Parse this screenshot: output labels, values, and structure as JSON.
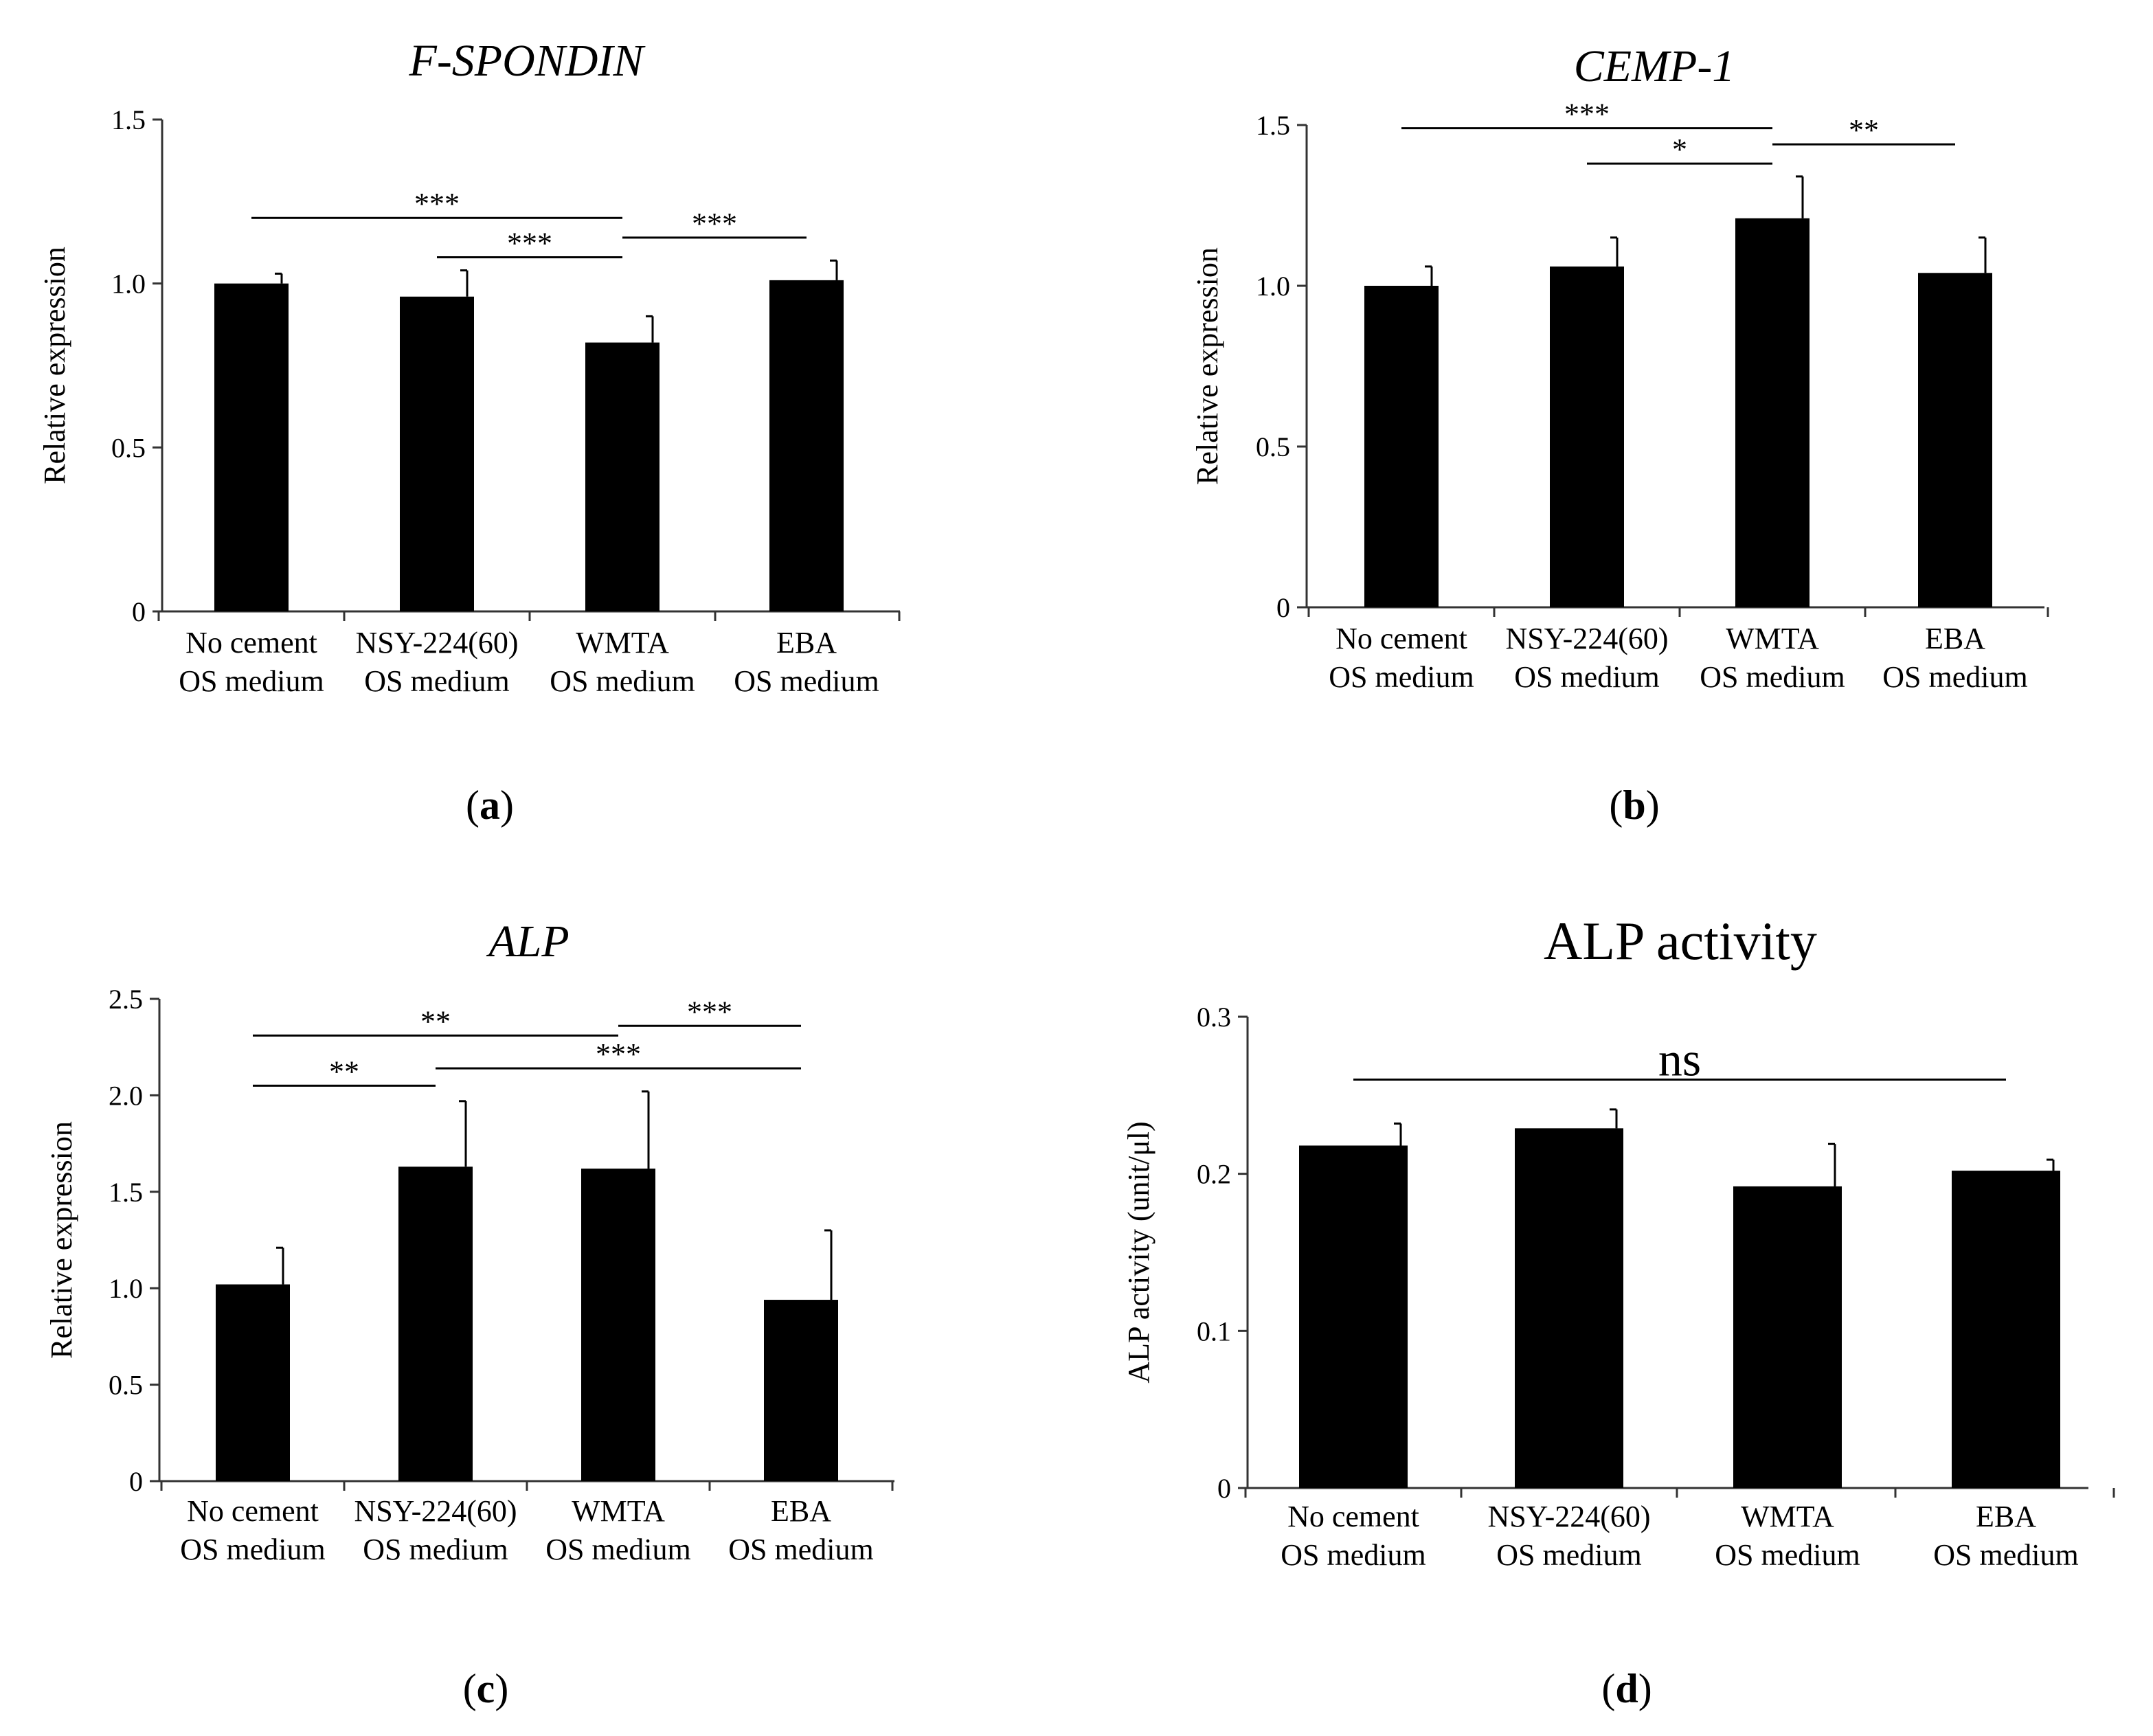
{
  "chart_data": [
    {
      "type": "bar",
      "panel_label": "a",
      "title": "F-SPONDIN",
      "title_italic": true,
      "ylabel": "Relative expression",
      "xlabel": "",
      "ylim": [
        0,
        1.5
      ],
      "yticks": [
        0,
        0.5,
        1.0,
        1.5
      ],
      "ytick_labels": [
        "0",
        "0.5",
        "1.0",
        "1.5"
      ],
      "categories": [
        [
          "No cement",
          "OS medium"
        ],
        [
          "NSY-224(60)",
          "OS medium"
        ],
        [
          "WMTA",
          "OS medium"
        ],
        [
          "EBA",
          "OS medium"
        ]
      ],
      "values": [
        1.0,
        0.96,
        0.82,
        1.01
      ],
      "errors": [
        0.03,
        0.08,
        0.08,
        0.06
      ],
      "significance": [
        {
          "from": 0,
          "to": 2,
          "label": "***",
          "y": 1.2
        },
        {
          "from": 1,
          "to": 2,
          "label": "***",
          "y": 1.08
        },
        {
          "from": 2,
          "to": 3,
          "label": "***",
          "y": 1.14
        }
      ]
    },
    {
      "type": "bar",
      "panel_label": "b",
      "title": "CEMP-1",
      "title_italic": true,
      "ylabel": "Relative expression",
      "xlabel": "",
      "ylim": [
        0,
        1.5
      ],
      "yticks": [
        0,
        0.5,
        1.0,
        1.5
      ],
      "ytick_labels": [
        "0",
        "0.5",
        "1.0",
        "1.5"
      ],
      "categories": [
        [
          "No cement",
          "OS medium"
        ],
        [
          "NSY-224(60)",
          "OS medium"
        ],
        [
          "WMTA",
          "OS medium"
        ],
        [
          "EBA",
          "OS medium"
        ]
      ],
      "values": [
        1.0,
        1.06,
        1.21,
        1.04
      ],
      "errors": [
        0.06,
        0.09,
        0.13,
        0.11
      ],
      "significance": [
        {
          "from": 0,
          "to": 2,
          "label": "***",
          "y": 1.49
        },
        {
          "from": 1,
          "to": 2,
          "label": "*",
          "y": 1.38
        },
        {
          "from": 2,
          "to": 3,
          "label": "**",
          "y": 1.44
        }
      ]
    },
    {
      "type": "bar",
      "panel_label": "c",
      "title": "ALP",
      "title_italic": true,
      "ylabel": "Relative expression",
      "xlabel": "",
      "ylim": [
        0,
        2.5
      ],
      "yticks": [
        0,
        0.5,
        1.0,
        1.5,
        2.0,
        2.5
      ],
      "ytick_labels": [
        "0",
        "0.5",
        "1.0",
        "1.5",
        "2.0",
        "2.5"
      ],
      "categories": [
        [
          "No cement",
          "OS medium"
        ],
        [
          "NSY-224(60)",
          "OS medium"
        ],
        [
          "WMTA",
          "OS medium"
        ],
        [
          "EBA",
          "OS medium"
        ]
      ],
      "values": [
        1.02,
        1.63,
        1.62,
        0.94
      ],
      "errors": [
        0.19,
        0.34,
        0.4,
        0.36
      ],
      "significance": [
        {
          "from": 0,
          "to": 2,
          "label": "**",
          "y": 2.31
        },
        {
          "from": 0,
          "to": 1,
          "label": "**",
          "y": 2.05
        },
        {
          "from": 2,
          "to": 3,
          "label": "***",
          "y": 2.36
        },
        {
          "from": 1,
          "to": 3,
          "label": "***",
          "y": 2.14
        }
      ]
    },
    {
      "type": "bar",
      "panel_label": "d",
      "title": "ALP activity",
      "title_italic": false,
      "ylabel": "ALP activity (unit/μl)",
      "xlabel": "",
      "ylim": [
        0,
        0.3
      ],
      "yticks": [
        0,
        0.1,
        0.2,
        0.3
      ],
      "ytick_labels": [
        "0",
        "0.1",
        "0.2",
        "0.3"
      ],
      "categories": [
        [
          "No cement",
          "OS medium"
        ],
        [
          "NSY-224(60)",
          "OS medium"
        ],
        [
          "WMTA",
          "OS medium"
        ],
        [
          "EBA",
          "OS medium"
        ]
      ],
      "values": [
        0.218,
        0.229,
        0.192,
        0.202
      ],
      "errors": [
        0.014,
        0.012,
        0.027,
        0.007
      ],
      "significance": [
        {
          "from": 0,
          "to": 3,
          "label": "ns",
          "y": 0.26,
          "large": true
        }
      ]
    }
  ]
}
